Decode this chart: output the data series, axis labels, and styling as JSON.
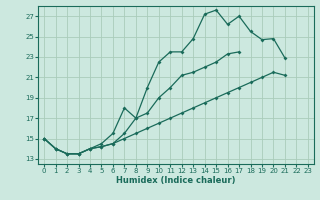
{
  "xlabel": "Humidex (Indice chaleur)",
  "bg_color": "#cce8df",
  "grid_color": "#aaccbb",
  "line_color": "#1a6b5a",
  "xlim": [
    -0.5,
    23.5
  ],
  "ylim": [
    12.5,
    28
  ],
  "xticks": [
    0,
    1,
    2,
    3,
    4,
    5,
    6,
    7,
    8,
    9,
    10,
    11,
    12,
    13,
    14,
    15,
    16,
    17,
    18,
    19,
    20,
    21,
    22,
    23
  ],
  "yticks": [
    13,
    15,
    17,
    19,
    21,
    23,
    25,
    27
  ],
  "curve1_y": [
    15.0,
    14.0,
    13.5,
    13.5,
    14.0,
    14.2,
    14.5,
    15.5,
    17.0,
    20.0,
    22.5,
    23.5,
    23.5,
    24.8,
    27.2,
    27.6,
    26.2,
    27.0,
    25.5,
    24.7,
    24.8,
    22.9
  ],
  "curve2_y": [
    15.0,
    14.0,
    13.5,
    13.5,
    14.0,
    14.5,
    15.5,
    18.0,
    17.0,
    17.5,
    19.0,
    20.0,
    21.2,
    21.5,
    22.0,
    22.5,
    23.3,
    23.5
  ],
  "curve3_y": [
    15.0,
    14.0,
    13.5,
    13.5,
    14.0,
    14.2,
    14.5,
    15.0,
    15.5,
    16.0,
    16.5,
    17.0,
    17.5,
    18.0,
    18.5,
    19.0,
    19.5,
    20.0,
    20.5,
    21.0,
    21.5,
    21.2
  ]
}
